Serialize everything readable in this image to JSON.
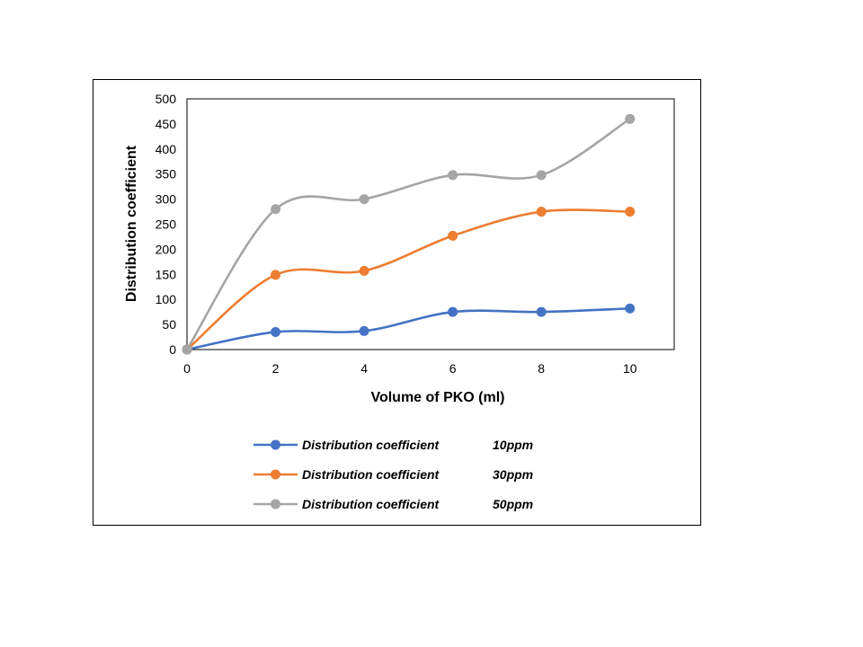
{
  "chart_data": {
    "type": "line",
    "title": "",
    "xlabel": "Volume of PKO (ml)",
    "ylabel": "Distribution coefficient",
    "x": [
      0,
      2,
      4,
      6,
      8,
      10
    ],
    "xlim": [
      0,
      11
    ],
    "ylim": [
      0,
      500
    ],
    "xticks": [
      0,
      2,
      4,
      6,
      8,
      10
    ],
    "yticks": [
      0,
      50,
      100,
      150,
      200,
      250,
      300,
      350,
      400,
      450,
      500
    ],
    "grid": false,
    "smooth": true,
    "legend_position": "bottom",
    "series": [
      {
        "name": "Distribution coefficient",
        "unit_label": "10ppm",
        "color": "#4472C4",
        "values": [
          0,
          35,
          37,
          75,
          75,
          82
        ]
      },
      {
        "name": "Distribution coefficient",
        "unit_label": "30ppm",
        "color": "#ED7D31",
        "values": [
          0,
          149,
          157,
          227,
          275,
          275
        ]
      },
      {
        "name": "Distribution coefficient",
        "unit_label": "50ppm",
        "color": "#A5A5A5",
        "values": [
          0,
          280,
          300,
          348,
          348,
          460
        ]
      }
    ]
  }
}
